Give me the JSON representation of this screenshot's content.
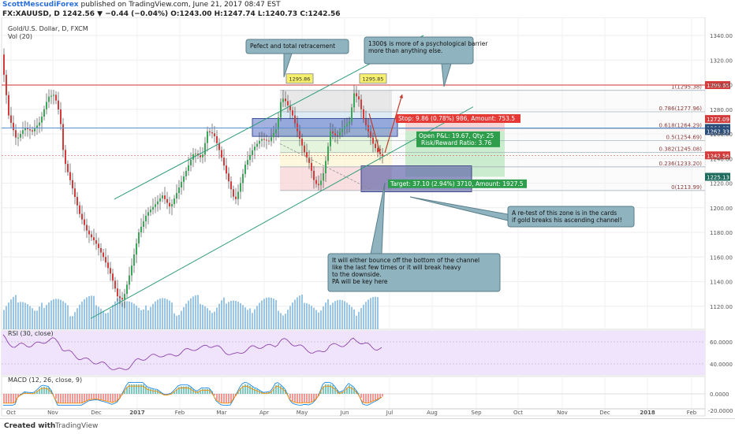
{
  "header": {
    "author": "ScottMescudiForex",
    "published_text": "published on TradingView.com, June 21, 2017 08:47 EST",
    "symbol_line": "FX:XAUUSD, D  1242.56 ▼ −0.44 (−0.04%) O:1243.00 H:1247.74 L:1240.73 C:1242.56"
  },
  "legend": {
    "title": "Gold/U.S. Dollar, D, FXCM",
    "vol": "Vol (20)",
    "rsi": "RSI (30, close)",
    "macd": "MACD (12, 26, close, 9)"
  },
  "footer": {
    "created_with": "Created with",
    "brand": "TradingView"
  },
  "chart_data": {
    "type": "candlestick",
    "instrument": "Gold/U.S. Dollar, D, FXCM",
    "price_axis": {
      "ticks": [
        1120,
        1140,
        1160,
        1180,
        1200,
        1220,
        1240,
        1260,
        1280,
        1300,
        1320,
        1340
      ],
      "range": [
        1110,
        1350
      ]
    },
    "time_axis": {
      "ticks": [
        "Oct",
        "Nov",
        "Dec",
        "2017",
        "Feb",
        "Mar",
        "Apr",
        "May",
        "Jun",
        "Jul",
        "Aug",
        "Sep",
        "Oct",
        "Nov",
        "Dec",
        "2018",
        "Feb"
      ]
    },
    "price_path": [
      [
        0,
        1330
      ],
      [
        10,
        1275
      ],
      [
        20,
        1255
      ],
      [
        30,
        1265
      ],
      [
        40,
        1262
      ],
      [
        50,
        1270
      ],
      [
        60,
        1290
      ],
      [
        68,
        1292
      ],
      [
        75,
        1275
      ],
      [
        80,
        1240
      ],
      [
        90,
        1218
      ],
      [
        100,
        1195
      ],
      [
        110,
        1180
      ],
      [
        120,
        1172
      ],
      [
        130,
        1160
      ],
      [
        140,
        1145
      ],
      [
        148,
        1128
      ],
      [
        155,
        1125
      ],
      [
        165,
        1150
      ],
      [
        175,
        1180
      ],
      [
        185,
        1195
      ],
      [
        195,
        1202
      ],
      [
        205,
        1210
      ],
      [
        215,
        1200
      ],
      [
        225,
        1215
      ],
      [
        235,
        1230
      ],
      [
        245,
        1245
      ],
      [
        255,
        1240
      ],
      [
        262,
        1262
      ],
      [
        270,
        1260
      ],
      [
        278,
        1245
      ],
      [
        285,
        1230
      ],
      [
        292,
        1215
      ],
      [
        297,
        1205
      ],
      [
        302,
        1215
      ],
      [
        310,
        1235
      ],
      [
        320,
        1248
      ],
      [
        330,
        1256
      ],
      [
        340,
        1254
      ],
      [
        350,
        1265
      ],
      [
        356,
        1290
      ],
      [
        362,
        1286
      ],
      [
        370,
        1275
      ],
      [
        378,
        1258
      ],
      [
        385,
        1245
      ],
      [
        392,
        1235
      ],
      [
        398,
        1220
      ],
      [
        404,
        1218
      ],
      [
        410,
        1230
      ],
      [
        418,
        1262
      ],
      [
        426,
        1258
      ],
      [
        434,
        1265
      ],
      [
        442,
        1270
      ],
      [
        448,
        1293
      ],
      [
        454,
        1288
      ],
      [
        460,
        1272
      ],
      [
        466,
        1262
      ],
      [
        472,
        1252
      ],
      [
        478,
        1245
      ],
      [
        484,
        1242
      ]
    ],
    "price_labels": [
      {
        "value": "1299.65",
        "color": "#d43a3a"
      },
      {
        "value": "1272.09",
        "color": "#d43a3a"
      },
      {
        "value": "1264.83",
        "color": "#2a4d7a"
      },
      {
        "value": "1262.33",
        "color": "#2a4d7a"
      },
      {
        "value": "1242.56",
        "color": "#d43a3a"
      },
      {
        "value": "1225.13",
        "color": "#1d6b5c"
      }
    ],
    "fib_levels": [
      {
        "ratio": "1(1295.38)",
        "value": 1295.38
      },
      {
        "ratio": "0.786(1277.96)",
        "value": 1277.96
      },
      {
        "ratio": "0.618(1264.29)",
        "value": 1264.29
      },
      {
        "ratio": "0.5(1254.69)",
        "value": 1254.69
      },
      {
        "ratio": "0.382(1245.08)",
        "value": 1245.08
      },
      {
        "ratio": "0.236(1233.20)",
        "value": 1233.2
      },
      {
        "ratio": "0(1213.99)",
        "value": 1213.99
      }
    ],
    "peak_labels": [
      "1295.86",
      "1295.85"
    ],
    "trade": {
      "stop_label": "Stop: 9.86 (0.78%) 986, Amount: 753.5",
      "pl_label": "Open P&L: 19.67, Qty: 25",
      "rr_label": "Risk/Reward Ratio: 3.76",
      "target_label": "Target: 37.10 (2.94%) 3710, Amount: 1927.5"
    },
    "annotations": [
      "Pefect and total retracement",
      "1300$ is more of a psychological barrier more than anything else.",
      "A re-test of this zone is in the cards if gold breaks his ascending channel!",
      "It will either bounce off the bottom of the channel like the last few times or it will break heavy to the downside.",
      "PA will be key here"
    ],
    "rsi": {
      "ticks": [
        40,
        60
      ],
      "range": [
        30,
        70
      ]
    },
    "macd": {
      "ticks": [
        "0.0000",
        "-20.0000"
      ]
    }
  }
}
